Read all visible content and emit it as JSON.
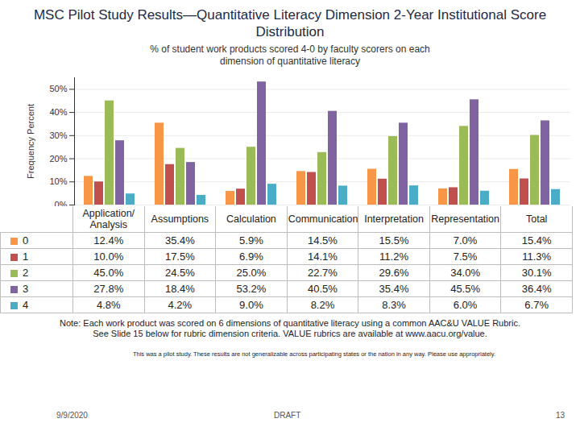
{
  "chart_data": {
    "type": "bar",
    "title": "MSC Pilot Study Results—Quantitative Literacy Dimension 2-Year Institutional Score Distribution",
    "subtitle": "% of student work products scored 4-0 by faculty scorers on each dimension of quantitative literacy",
    "y_label": "Frequency Percent",
    "categories": [
      "Application/ Analysis",
      "Assumptions",
      "Calculation",
      "Communication",
      "Interpretation",
      "Representation",
      "Total"
    ],
    "series": [
      {
        "name": "0",
        "color": "#f79646",
        "values": [
          12.4,
          35.4,
          5.9,
          14.5,
          15.5,
          7.0,
          15.4
        ],
        "value_labels": [
          "12.4%",
          "35.4%",
          "5.9%",
          "14.5%",
          "15.5%",
          "7.0%",
          "15.4%"
        ]
      },
      {
        "name": "1",
        "color": "#c0504d",
        "values": [
          10.0,
          17.5,
          6.9,
          14.1,
          11.2,
          7.5,
          11.3
        ],
        "value_labels": [
          "10.0%",
          "17.5%",
          "6.9%",
          "14.1%",
          "11.2%",
          "7.5%",
          "11.3%"
        ]
      },
      {
        "name": "2",
        "color": "#9bbb59",
        "values": [
          45.0,
          24.5,
          25.0,
          22.7,
          29.6,
          34.0,
          30.1
        ],
        "value_labels": [
          "45.0%",
          "24.5%",
          "25.0%",
          "22.7%",
          "29.6%",
          "34.0%",
          "30.1%"
        ]
      },
      {
        "name": "3",
        "color": "#8064a2",
        "values": [
          27.8,
          18.4,
          53.2,
          40.5,
          35.4,
          45.5,
          36.4
        ],
        "value_labels": [
          "27.8%",
          "18.4%",
          "53.2%",
          "40.5%",
          "35.4%",
          "45.5%",
          "36.4%"
        ]
      },
      {
        "name": "4",
        "color": "#4bacc6",
        "values": [
          4.8,
          4.2,
          9.0,
          8.2,
          8.3,
          6.0,
          6.7
        ],
        "value_labels": [
          "4.8%",
          "4.2%",
          "9.0%",
          "8.2%",
          "8.3%",
          "6.0%",
          "6.7%"
        ]
      }
    ],
    "ylim": [
      0,
      55
    ],
    "yticks": [
      {
        "value": 0,
        "label": "0%"
      },
      {
        "value": 10,
        "label": "10%"
      },
      {
        "value": 20,
        "label": "20%"
      },
      {
        "value": 30,
        "label": "30%"
      },
      {
        "value": 40,
        "label": "40%"
      },
      {
        "value": 50,
        "label": "50%"
      }
    ],
    "grid": true,
    "annotations": [
      "Note: Each work product was scored on 6 dimensions of quantitative literacy using a common AAC&U VALUE Rubric. See Slide 15 below for rubric dimension criteria. VALUE rubrics are available at www.aacu.org/value.",
      "This was a pilot study. These results are not generalizable across participating states or the nation in any way. Please use appropriately.",
      "9/9/2020",
      "DRAFT",
      "13"
    ]
  }
}
